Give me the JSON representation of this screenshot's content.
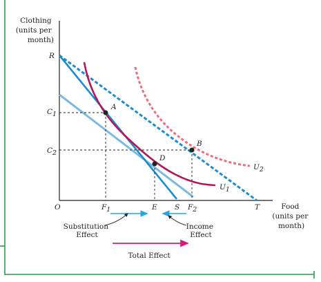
{
  "axes": {
    "y_label": [
      "Clothing",
      "(units per",
      "month)"
    ],
    "x_label": [
      "Food",
      "(units per",
      "month)"
    ],
    "origin": "O"
  },
  "points": {
    "R": "R",
    "T": "T",
    "C1_main": "C",
    "C1_sub": "1",
    "C2_main": "C",
    "C2_sub": "2",
    "F1_main": "F",
    "F1_sub": "1",
    "F2_main": "F",
    "F2_sub": "2",
    "E": "E",
    "S": "S",
    "A": "A",
    "B": "B",
    "D": "D",
    "U1_main": "U",
    "U1_sub": "1",
    "U2_main": "U",
    "U2_sub": "2"
  },
  "effects": {
    "substitution": [
      "Substitution",
      "Effect"
    ],
    "income": [
      "Income",
      "Effect"
    ],
    "total": "Total Effect"
  },
  "colors": {
    "budget_dark": "#1a8ccf",
    "budget_light": "#7db8e0",
    "budget_new_dashed": "#1a8ccf",
    "indifference_u1": "#b0185a",
    "indifference_u2_dashed": "#ef6a7a",
    "arrow_blue": "#27a3e0",
    "arrow_total": "#e0177a",
    "frame_green": "#2e9a45",
    "axis": "#222222"
  }
}
